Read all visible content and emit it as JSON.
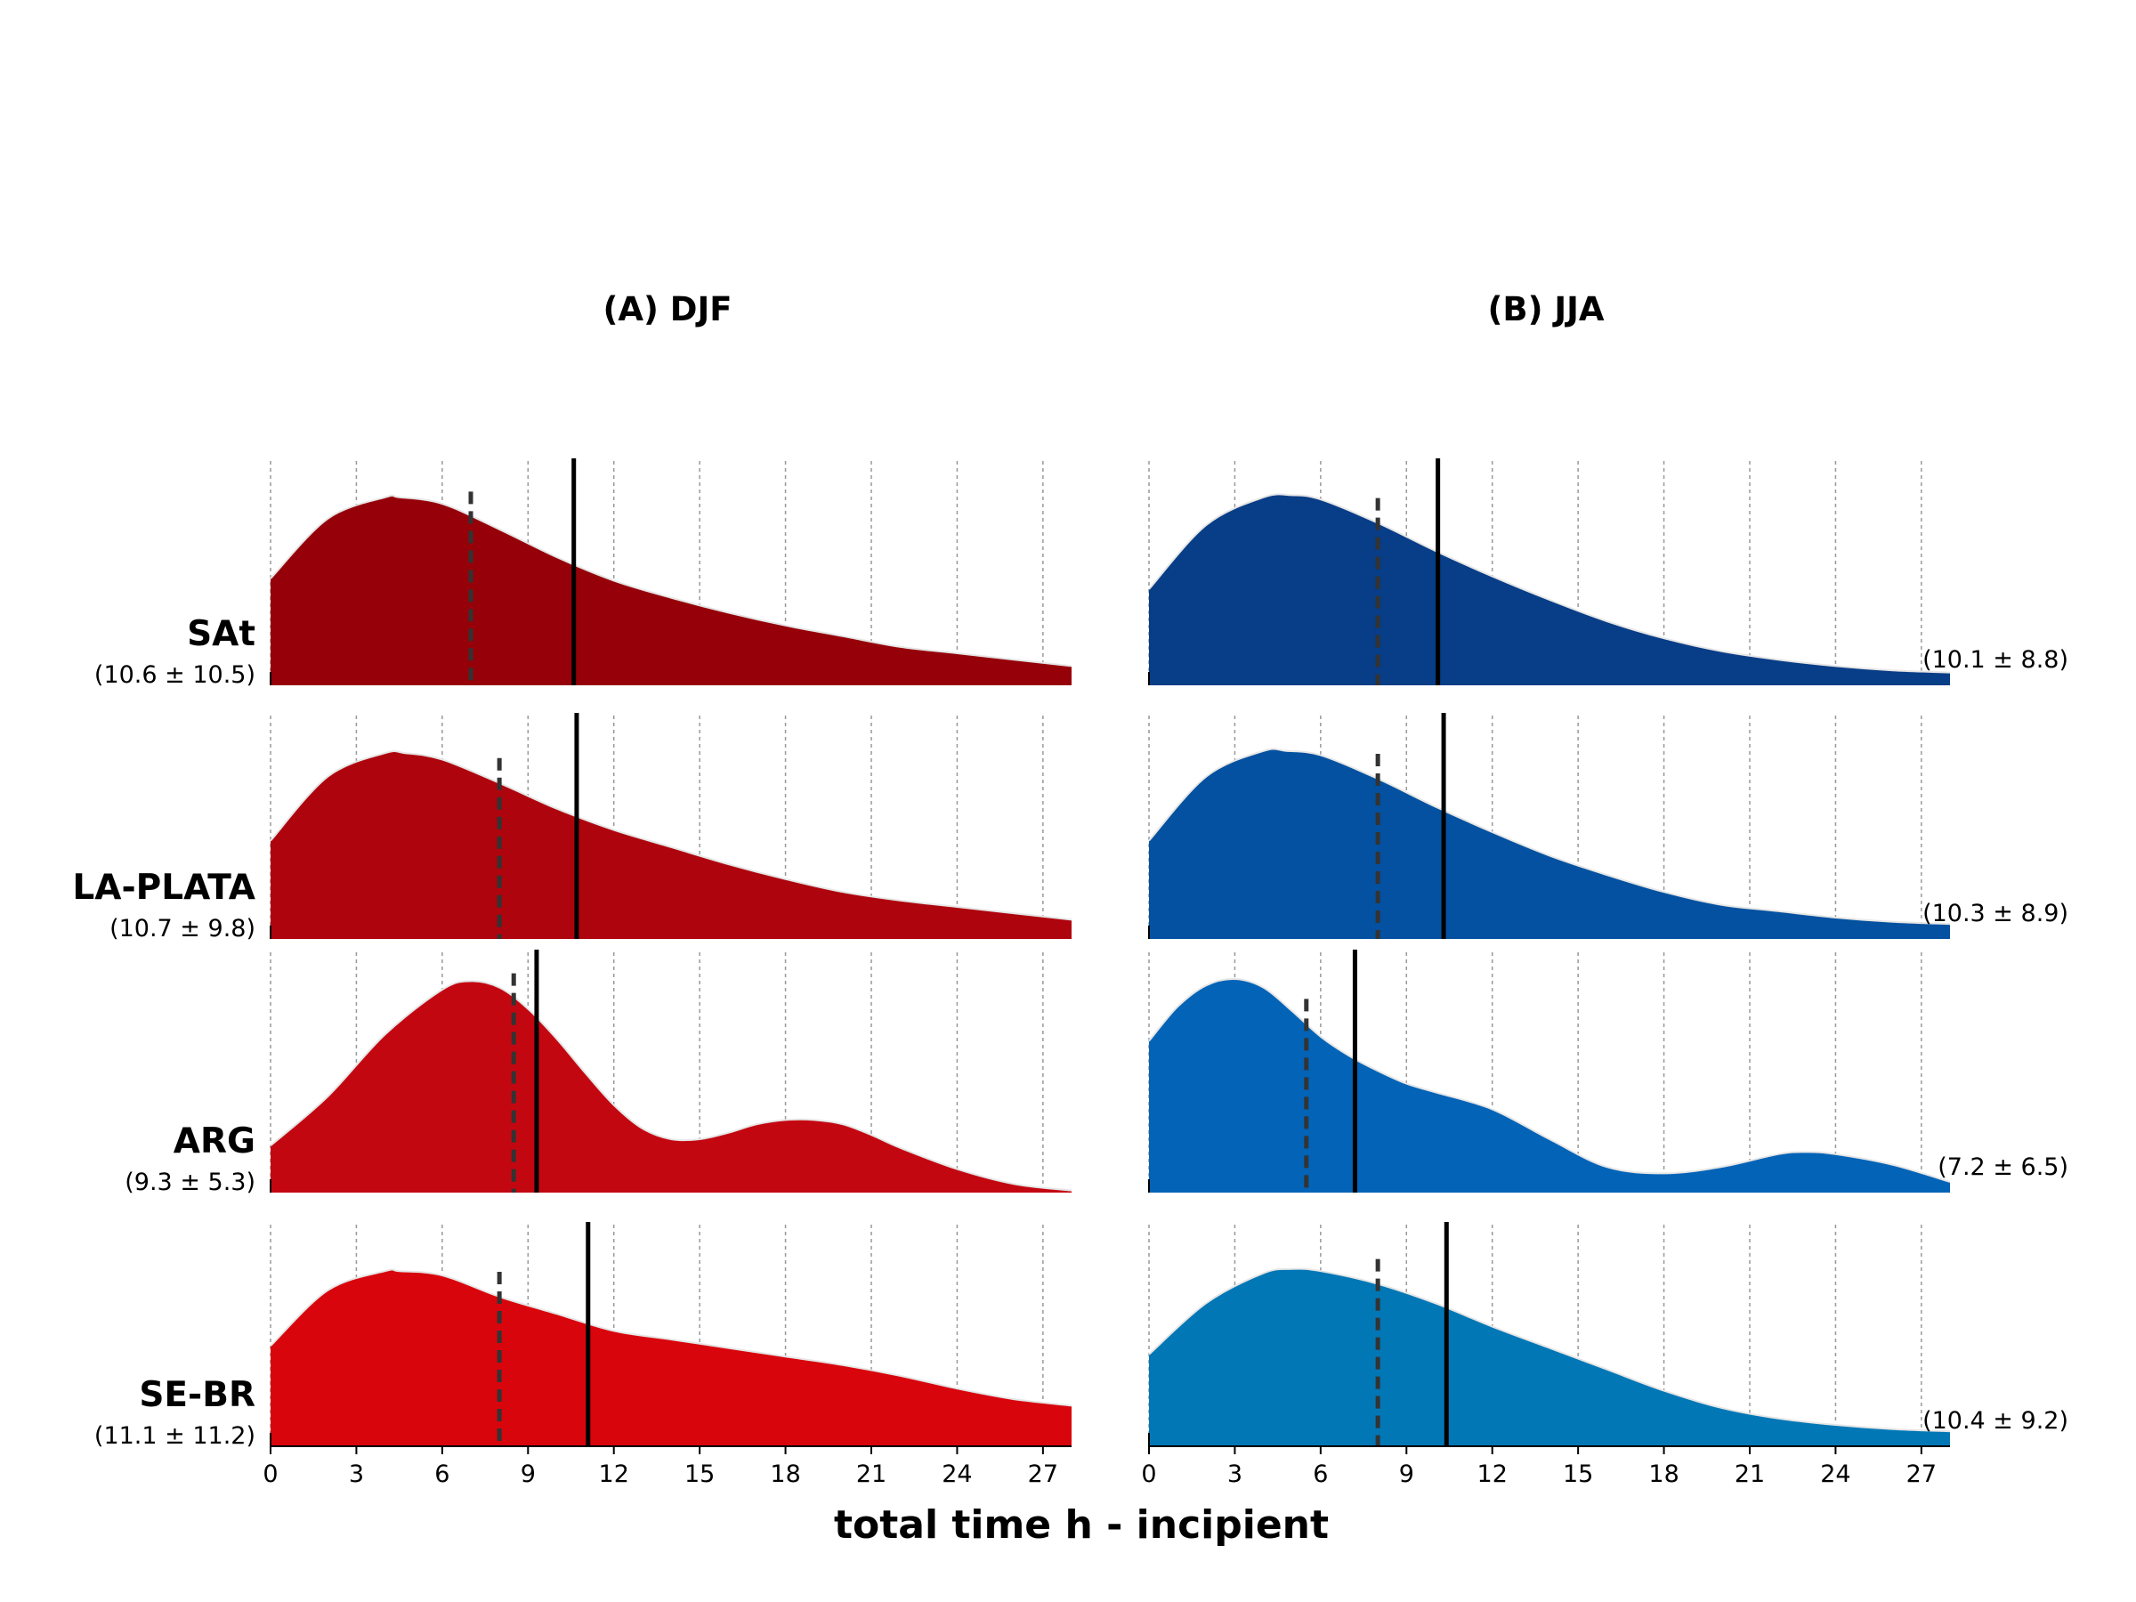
{
  "chart_data": {
    "type": "area",
    "xlabel": "total time h - incipient",
    "xlim": [
      0,
      28
    ],
    "xticks": [
      0,
      3,
      6,
      9,
      12,
      15,
      18,
      21,
      24,
      27
    ],
    "grid": "vertical dashed",
    "line_styles": {
      "dashed": "median",
      "solid": "mean"
    },
    "panels": [
      {
        "title": "(A) DJF",
        "stat_position": "left",
        "rows": [
          {
            "region": "SAt",
            "stats": "(10.6 ± 10.5)",
            "color": "#960009",
            "mean": 10.6,
            "median": 7.0,
            "density": {
              "x": [
                0,
                2,
                4,
                4.5,
                6,
                8,
                10,
                12,
                14,
                16,
                18,
                20,
                22,
                24,
                26,
                28
              ],
              "y": [
                0.5,
                0.78,
                0.88,
                0.88,
                0.85,
                0.73,
                0.6,
                0.49,
                0.41,
                0.34,
                0.28,
                0.23,
                0.18,
                0.15,
                0.12,
                0.09
              ]
            }
          },
          {
            "region": "LA-PLATA",
            "stats": "(10.7 ± 9.8)",
            "color": "#ae040d",
            "mean": 10.7,
            "median": 8.0,
            "density": {
              "x": [
                0,
                2,
                4,
                4.7,
                6,
                8,
                10,
                12,
                14,
                16,
                18,
                20,
                22,
                24,
                26,
                28
              ],
              "y": [
                0.46,
                0.76,
                0.87,
                0.87,
                0.84,
                0.73,
                0.61,
                0.51,
                0.43,
                0.35,
                0.28,
                0.22,
                0.18,
                0.15,
                0.12,
                0.09
              ]
            }
          },
          {
            "region": "ARG",
            "stats": "(9.3 ± 5.3)",
            "color": "#c30711",
            "mean": 9.3,
            "median": 8.5,
            "density": {
              "x": [
                0,
                2,
                4,
                6,
                7,
                8,
                9,
                10,
                11,
                12,
                13,
                14,
                15,
                16,
                17,
                18,
                19,
                20,
                21,
                22,
                24,
                26,
                28
              ],
              "y": [
                0.22,
                0.45,
                0.74,
                0.95,
                0.99,
                0.96,
                0.86,
                0.72,
                0.56,
                0.41,
                0.3,
                0.25,
                0.25,
                0.28,
                0.32,
                0.34,
                0.34,
                0.32,
                0.27,
                0.21,
                0.11,
                0.04,
                0.01
              ]
            }
          },
          {
            "region": "SE-BR",
            "stats": "(11.1 ± 11.2)",
            "color": "#d8050d",
            "mean": 11.1,
            "median": 8.0,
            "density": {
              "x": [
                0,
                2,
                4,
                4.5,
                6,
                8,
                10,
                12,
                14,
                16,
                18,
                20,
                22,
                24,
                26,
                28
              ],
              "y": [
                0.47,
                0.73,
                0.82,
                0.82,
                0.8,
                0.7,
                0.62,
                0.54,
                0.5,
                0.46,
                0.42,
                0.38,
                0.33,
                0.27,
                0.22,
                0.19
              ]
            }
          }
        ]
      },
      {
        "title": "(B) JJA",
        "stat_position": "right",
        "rows": [
          {
            "region": "SAt",
            "stats": "(10.1 ± 8.8)",
            "color": "#083d87",
            "mean": 10.1,
            "median": 8.0,
            "density": {
              "x": [
                0,
                2,
                4,
                5,
                6,
                8,
                10,
                12,
                14,
                16,
                18,
                20,
                22,
                24,
                26,
                28
              ],
              "y": [
                0.45,
                0.75,
                0.88,
                0.89,
                0.87,
                0.76,
                0.63,
                0.51,
                0.4,
                0.3,
                0.22,
                0.16,
                0.12,
                0.09,
                0.07,
                0.06
              ]
            }
          },
          {
            "region": "LA-PLATA",
            "stats": "(10.3 ± 8.9)",
            "color": "#0351a0",
            "mean": 10.3,
            "median": 8.0,
            "density": {
              "x": [
                0,
                2,
                4,
                4.8,
                6,
                8,
                10,
                12,
                14,
                16,
                18,
                20,
                22,
                24,
                26,
                28
              ],
              "y": [
                0.46,
                0.76,
                0.88,
                0.88,
                0.86,
                0.75,
                0.62,
                0.5,
                0.39,
                0.3,
                0.22,
                0.16,
                0.13,
                0.1,
                0.08,
                0.07
              ]
            }
          },
          {
            "region": "ARG",
            "stats": "(7.2 ± 6.5)",
            "color": "#0263b7",
            "mean": 7.2,
            "median": 5.5,
            "density": {
              "x": [
                0,
                1,
                2,
                3,
                4,
                5,
                6,
                7,
                8,
                9,
                10,
                12,
                14,
                16,
                18,
                20,
                22,
                23,
                24,
                26,
                28
              ],
              "y": [
                0.71,
                0.87,
                0.97,
                1.0,
                0.96,
                0.85,
                0.73,
                0.64,
                0.57,
                0.51,
                0.47,
                0.39,
                0.25,
                0.12,
                0.09,
                0.12,
                0.18,
                0.19,
                0.18,
                0.13,
                0.05
              ]
            }
          },
          {
            "region": "SE-BR",
            "stats": "(10.4 ± 9.2)",
            "color": "#0277b6",
            "mean": 10.4,
            "median": 8.0,
            "density": {
              "x": [
                0,
                2,
                4,
                5,
                6,
                8,
                10,
                12,
                14,
                16,
                18,
                20,
                22,
                24,
                26,
                28
              ],
              "y": [
                0.43,
                0.67,
                0.81,
                0.83,
                0.82,
                0.76,
                0.67,
                0.56,
                0.46,
                0.36,
                0.26,
                0.18,
                0.13,
                0.1,
                0.08,
                0.07
              ]
            }
          }
        ]
      }
    ]
  }
}
